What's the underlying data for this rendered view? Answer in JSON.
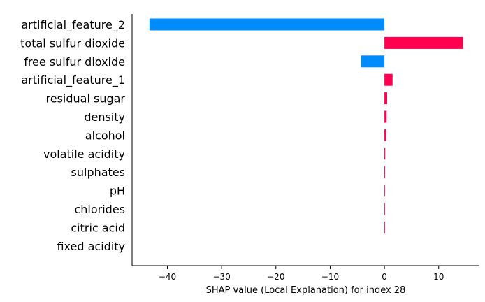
{
  "chart_data": {
    "type": "bar",
    "orientation": "horizontal",
    "categories": [
      "artificial_feature_2",
      "total sulfur dioxide",
      "free sulfur dioxide",
      "artificial_feature_1",
      "residual sugar",
      "density",
      "alcohol",
      "volatile acidity",
      "sulphates",
      "pH",
      "chlorides",
      "citric acid",
      "fixed acidity"
    ],
    "values": [
      -43.3,
      14.5,
      -4.3,
      1.5,
      0.5,
      0.4,
      0.3,
      0.15,
      0.12,
      0.1,
      0.08,
      0.06,
      0.0
    ],
    "xlabel": "SHAP value (Local Explanation) for index 28",
    "ylabel": "",
    "xlim": [
      -46.5,
      17.5
    ],
    "xticks": [
      -40,
      -30,
      -20,
      -10,
      0,
      10
    ],
    "xtick_labels": [
      "−40",
      "−30",
      "−20",
      "−10",
      "0",
      "10"
    ],
    "colors": {
      "positive": "#ff0051",
      "negative": "#008bfb"
    },
    "grid": false,
    "legend": "none"
  }
}
